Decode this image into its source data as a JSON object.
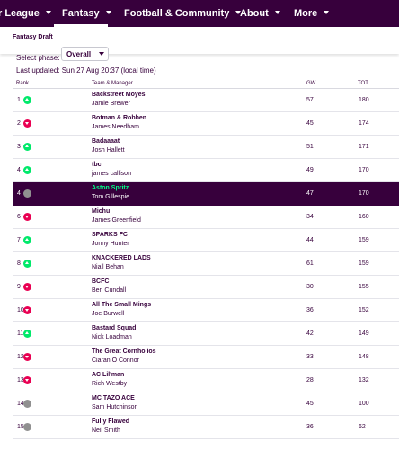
{
  "nav": {
    "items": [
      {
        "label": "r League"
      },
      {
        "label": "Fantasy"
      },
      {
        "label": "Football & Community"
      },
      {
        "label": "About"
      },
      {
        "label": "More"
      }
    ]
  },
  "subnav": {
    "title": "Fantasy Draft"
  },
  "phase": {
    "label": "Select phase:",
    "value": "Overall"
  },
  "last_updated": "Last updated: Sun 27 Aug 20:37 (local time)",
  "columns": {
    "rank": "Rank",
    "team": "Team & Manager",
    "gw": "GW",
    "tot": "TOT"
  },
  "highlight_color": "#37003c",
  "standings": [
    {
      "rank": "1",
      "movement": "up",
      "team": "Backstreet Moyes",
      "manager": "Jamie Brewer",
      "gw": "57",
      "tot": "180"
    },
    {
      "rank": "2",
      "movement": "down",
      "team": "Botman & Robben",
      "manager": "James Needham",
      "gw": "45",
      "tot": "174"
    },
    {
      "rank": "3",
      "movement": "up",
      "team": "Badaaaat",
      "manager": "Josh Hallett",
      "gw": "51",
      "tot": "171"
    },
    {
      "rank": "4",
      "movement": "up",
      "team": "tbc",
      "manager": "james callison",
      "gw": "49",
      "tot": "170"
    },
    {
      "rank": "4",
      "movement": "same",
      "team": "Aston Spritz",
      "manager": "Tom Gillespie",
      "gw": "47",
      "tot": "170",
      "highlight": true
    },
    {
      "rank": "6",
      "movement": "down",
      "team": "Michu",
      "manager": "James Greenfield",
      "gw": "34",
      "tot": "160"
    },
    {
      "rank": "7",
      "movement": "up",
      "team": "SPARKS FC",
      "manager": "Jonny Hunter",
      "gw": "44",
      "tot": "159"
    },
    {
      "rank": "8",
      "movement": "up",
      "team": "KNACKERED LADS",
      "manager": "Niall Behan",
      "gw": "61",
      "tot": "159"
    },
    {
      "rank": "9",
      "movement": "down",
      "team": "BCFC",
      "manager": "Ben Cundall",
      "gw": "30",
      "tot": "155"
    },
    {
      "rank": "10",
      "movement": "down",
      "team": "All The Small Mings",
      "manager": "Joe Burwell",
      "gw": "36",
      "tot": "152"
    },
    {
      "rank": "11",
      "movement": "up",
      "team": "Bastard Squad",
      "manager": "Nick Loadman",
      "gw": "42",
      "tot": "149"
    },
    {
      "rank": "12",
      "movement": "down",
      "team": "The Great Cornholios",
      "manager": "Ciaran O Connor",
      "gw": "33",
      "tot": "148"
    },
    {
      "rank": "13",
      "movement": "down",
      "team": "AC Lil'man",
      "manager": "Rich Westby",
      "gw": "28",
      "tot": "132"
    },
    {
      "rank": "14",
      "movement": "same",
      "team": "MC TAZO ACE",
      "manager": "Sam Hutchinson",
      "gw": "45",
      "tot": "100"
    },
    {
      "rank": "15",
      "movement": "same",
      "team": "Fully Flawed",
      "manager": "Neil Smith",
      "gw": "36",
      "tot": "62"
    }
  ]
}
